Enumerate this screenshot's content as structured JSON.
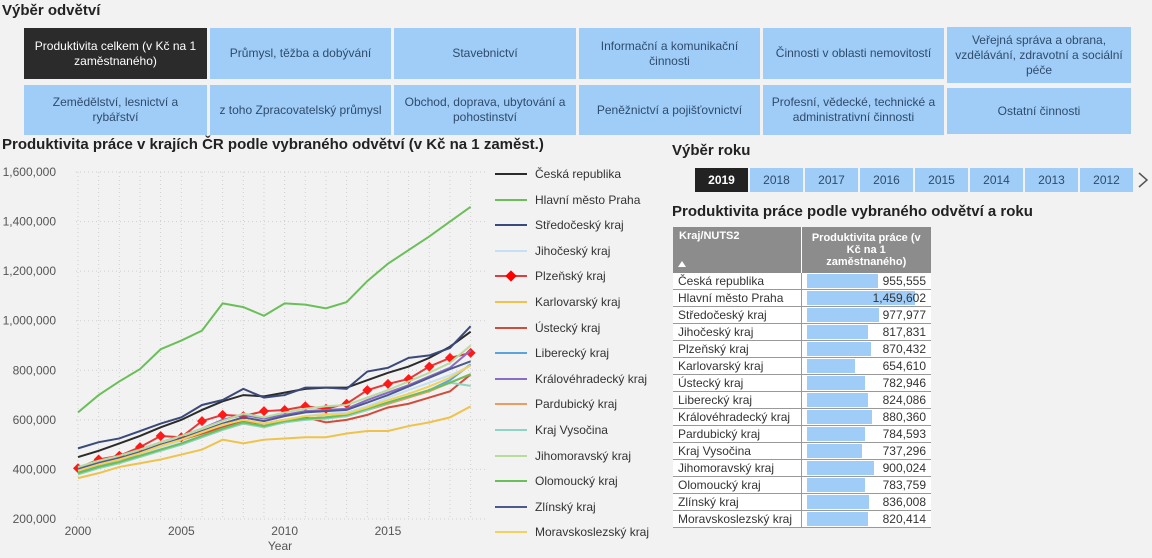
{
  "sector_heading": "Výběr odvětví",
  "sectors": [
    {
      "label": "Produktivita celkem (v Kč na 1 zaměstnaného)",
      "active": true
    },
    {
      "label": "Průmysl, těžba a dobývání"
    },
    {
      "label": "Stavebnictví"
    },
    {
      "label": "Informační a komunikační činnosti"
    },
    {
      "label": "Činnosti v oblasti nemovitostí"
    },
    {
      "label": "Veřejná správa a obrana, vzdělávání, zdravotní a sociální péče"
    },
    {
      "label": "Zemědělství, lesnictví a rybářství"
    },
    {
      "label": "z toho Zpracovatelský průmysl"
    },
    {
      "label": "Obchod, doprava, ubytování a pohostinství"
    },
    {
      "label": "Peněžnictví a pojišťovnictví"
    },
    {
      "label": "Profesní, vědecké, technické a administrativní činnosti"
    },
    {
      "label": "Ostatní činnosti"
    }
  ],
  "chart_data": {
    "type": "line",
    "title": "Produktivita práce v krajích ČR podle vybraného odvětví (v Kč na 1 zaměst.)",
    "xlabel": "Year",
    "ylabel": "",
    "xlim": [
      2000,
      2019
    ],
    "ylim": [
      200000,
      1600000
    ],
    "x_ticks": [
      "2000",
      "2005",
      "2010",
      "2015"
    ],
    "y_ticks": [
      "200,000",
      "400,000",
      "600,000",
      "800,000",
      "1,000,000",
      "1,200,000",
      "1,400,000",
      "1,600,000"
    ],
    "grid": true,
    "legend": "right",
    "x": [
      2000,
      2001,
      2002,
      2003,
      2004,
      2005,
      2006,
      2007,
      2008,
      2009,
      2010,
      2011,
      2012,
      2013,
      2014,
      2015,
      2016,
      2017,
      2018,
      2019
    ],
    "series": [
      {
        "name": "Česká republika",
        "color": "#2b2b2b",
        "values": [
          450000,
          475000,
          505000,
          535000,
          570000,
          600000,
          640000,
          675000,
          700000,
          695000,
          710000,
          725000,
          730000,
          730000,
          760000,
          790000,
          815000,
          850000,
          895000,
          955555
        ]
      },
      {
        "name": "Hlavní město Praha",
        "color": "#6bbf59",
        "values": [
          630000,
          700000,
          755000,
          805000,
          885000,
          920000,
          960000,
          1070000,
          1055000,
          1020000,
          1070000,
          1065000,
          1050000,
          1075000,
          1160000,
          1230000,
          1285000,
          1340000,
          1400000,
          1459602
        ]
      },
      {
        "name": "Středočeský kraj",
        "color": "#3b4a7a",
        "values": [
          485000,
          510000,
          525000,
          555000,
          585000,
          610000,
          660000,
          680000,
          725000,
          690000,
          700000,
          730000,
          730000,
          725000,
          795000,
          810000,
          850000,
          860000,
          890000,
          977977
        ]
      },
      {
        "name": "Jihočeský kraj",
        "color": "#c6dff5",
        "values": [
          395000,
          420000,
          440000,
          460000,
          490000,
          515000,
          545000,
          575000,
          600000,
          580000,
          600000,
          615000,
          625000,
          630000,
          655000,
          690000,
          720000,
          750000,
          780000,
          817831
        ]
      },
      {
        "name": "Plzeňský kraj",
        "color": "#e23b3b",
        "marker": "diamond",
        "values": [
          405000,
          440000,
          455000,
          490000,
          535000,
          530000,
          595000,
          620000,
          615000,
          635000,
          640000,
          655000,
          645000,
          665000,
          720000,
          745000,
          765000,
          815000,
          850000,
          870432
        ]
      },
      {
        "name": "Karlovarský kraj",
        "color": "#efc24a",
        "values": [
          365000,
          385000,
          410000,
          425000,
          440000,
          460000,
          480000,
          520000,
          505000,
          520000,
          525000,
          530000,
          530000,
          545000,
          555000,
          555000,
          575000,
          590000,
          610000,
          654610
        ]
      },
      {
        "name": "Ústecký kraj",
        "color": "#d24c3c",
        "values": [
          395000,
          425000,
          445000,
          470000,
          500000,
          520000,
          545000,
          570000,
          595000,
          585000,
          600000,
          610000,
          590000,
          600000,
          620000,
          650000,
          665000,
          690000,
          715000,
          782946
        ]
      },
      {
        "name": "Liberecký kraj",
        "color": "#5aa3dc",
        "values": [
          390000,
          415000,
          440000,
          455000,
          480000,
          500000,
          530000,
          560000,
          585000,
          575000,
          590000,
          605000,
          610000,
          615000,
          640000,
          665000,
          690000,
          720000,
          760000,
          824086
        ]
      },
      {
        "name": "Královéhradecký kraj",
        "color": "#8b6cc4",
        "values": [
          405000,
          430000,
          455000,
          480000,
          510000,
          535000,
          565000,
          600000,
          620000,
          605000,
          620000,
          635000,
          640000,
          645000,
          680000,
          710000,
          740000,
          775000,
          810000,
          880360
        ]
      },
      {
        "name": "Pardubický kraj",
        "color": "#ef9a63",
        "values": [
          385000,
          410000,
          430000,
          455000,
          480000,
          505000,
          535000,
          565000,
          585000,
          575000,
          590000,
          605000,
          610000,
          615000,
          640000,
          665000,
          690000,
          715000,
          750000,
          784593
        ]
      },
      {
        "name": "Kraj Vysočina",
        "color": "#8fd3c1",
        "values": [
          380000,
          405000,
          425000,
          450000,
          475000,
          500000,
          530000,
          560000,
          585000,
          570000,
          590000,
          600000,
          605000,
          615000,
          640000,
          670000,
          695000,
          720000,
          750000,
          737296
        ]
      },
      {
        "name": "Jihomoravský kraj",
        "color": "#b8dc9c",
        "values": [
          410000,
          435000,
          455000,
          480000,
          510000,
          535000,
          565000,
          595000,
          625000,
          610000,
          630000,
          645000,
          655000,
          660000,
          690000,
          720000,
          755000,
          790000,
          830000,
          900024
        ]
      },
      {
        "name": "Olomoucký kraj",
        "color": "#6bbf59",
        "values": [
          385000,
          410000,
          430000,
          455000,
          480000,
          505000,
          535000,
          565000,
          590000,
          575000,
          595000,
          605000,
          610000,
          620000,
          645000,
          670000,
          695000,
          720000,
          750000,
          783759
        ]
      },
      {
        "name": "Zlínský kraj",
        "color": "#4e5a8e",
        "values": [
          400000,
          425000,
          445000,
          470000,
          500000,
          525000,
          555000,
          585000,
          610000,
          595000,
          615000,
          630000,
          635000,
          640000,
          670000,
          700000,
          735000,
          770000,
          805000,
          836008
        ]
      },
      {
        "name": "Moravskoslezský kraj",
        "color": "#f3d25c",
        "values": [
          395000,
          420000,
          440000,
          465000,
          495000,
          520000,
          550000,
          580000,
          600000,
          585000,
          600000,
          615000,
          620000,
          625000,
          650000,
          680000,
          705000,
          735000,
          770000,
          820414
        ]
      }
    ]
  },
  "year_heading": "Výběr roku",
  "years": [
    {
      "label": "2019",
      "active": true
    },
    {
      "label": "2018"
    },
    {
      "label": "2017"
    },
    {
      "label": "2016"
    },
    {
      "label": "2015"
    },
    {
      "label": "2014"
    },
    {
      "label": "2013"
    },
    {
      "label": "2012"
    }
  ],
  "next_icon": "chevron-right-icon",
  "table_heading": "Produktivita práce podle vybraného odvětví a roku",
  "table": {
    "col1": "Kraj/NUTS2",
    "col2": "Produktivita práce (v Kč na 1 zaměstnaného)",
    "sort_icon": "sort-up-icon",
    "max": 1459602,
    "rows": [
      {
        "name": "Česká republika",
        "value": 955555,
        "display": "955,555"
      },
      {
        "name": "Hlavní město Praha",
        "value": 1459602,
        "display": "1,459,602"
      },
      {
        "name": "Středočeský kraj",
        "value": 977977,
        "display": "977,977"
      },
      {
        "name": "Jihočeský kraj",
        "value": 817831,
        "display": "817,831"
      },
      {
        "name": "Plzeňský kraj",
        "value": 870432,
        "display": "870,432"
      },
      {
        "name": "Karlovarský kraj",
        "value": 654610,
        "display": "654,610"
      },
      {
        "name": "Ústecký kraj",
        "value": 782946,
        "display": "782,946"
      },
      {
        "name": "Liberecký kraj",
        "value": 824086,
        "display": "824,086"
      },
      {
        "name": "Královéhradecký kraj",
        "value": 880360,
        "display": "880,360"
      },
      {
        "name": "Pardubický kraj",
        "value": 784593,
        "display": "784,593"
      },
      {
        "name": "Kraj Vysočina",
        "value": 737296,
        "display": "737,296"
      },
      {
        "name": "Jihomoravský kraj",
        "value": 900024,
        "display": "900,024"
      },
      {
        "name": "Olomoucký kraj",
        "value": 783759,
        "display": "783,759"
      },
      {
        "name": "Zlínský kraj",
        "value": 836008,
        "display": "836,008"
      },
      {
        "name": "Moravskoslezský kraj",
        "value": 820414,
        "display": "820,414"
      }
    ]
  }
}
